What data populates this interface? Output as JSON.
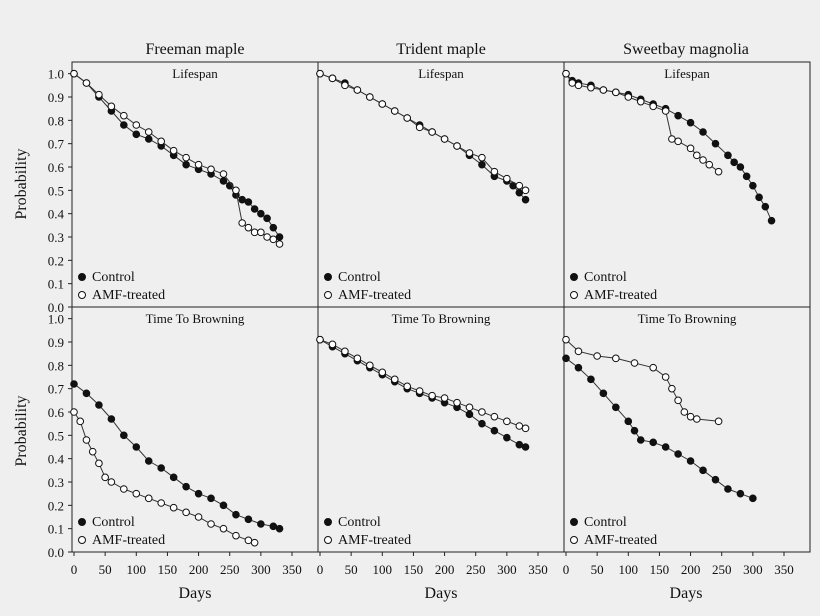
{
  "figure": {
    "background": "#efefef",
    "y_axis_label": "Probability",
    "x_axis_label": "Days",
    "columns": [
      "Freeman maple",
      "Trident maple",
      "Sweetbay magnolia"
    ],
    "rows": [
      "Lifespan",
      "Time To Browning"
    ],
    "legend": {
      "control": "Control",
      "amf": "AMF-treated"
    }
  },
  "chart_data": [
    {
      "type": "scatter",
      "row": "Lifespan",
      "column": "Freeman maple",
      "title": "Lifespan",
      "xlabel": "",
      "ylabel": "Probability",
      "xlim": [
        0,
        350
      ],
      "ylim": [
        0,
        1.05
      ],
      "grid": false,
      "legend_position": "bottom-left",
      "series": [
        {
          "name": "Control",
          "marker": "filled",
          "x": [
            0,
            20,
            40,
            60,
            80,
            100,
            120,
            140,
            160,
            180,
            200,
            220,
            240,
            250,
            260,
            270,
            280,
            290,
            300,
            310,
            320,
            330
          ],
          "y": [
            1.0,
            0.96,
            0.9,
            0.84,
            0.78,
            0.74,
            0.72,
            0.69,
            0.65,
            0.61,
            0.59,
            0.57,
            0.54,
            0.52,
            0.48,
            0.46,
            0.45,
            0.42,
            0.4,
            0.38,
            0.34,
            0.3
          ]
        },
        {
          "name": "AMF-treated",
          "marker": "open",
          "x": [
            0,
            20,
            40,
            60,
            80,
            100,
            120,
            140,
            160,
            180,
            200,
            220,
            240,
            260,
            270,
            280,
            290,
            300,
            310,
            320,
            330
          ],
          "y": [
            1.0,
            0.96,
            0.91,
            0.86,
            0.82,
            0.78,
            0.75,
            0.71,
            0.67,
            0.64,
            0.61,
            0.59,
            0.57,
            0.5,
            0.36,
            0.34,
            0.32,
            0.32,
            0.3,
            0.29,
            0.27
          ]
        }
      ]
    },
    {
      "type": "scatter",
      "row": "Lifespan",
      "column": "Trident maple",
      "title": "Lifespan",
      "xlabel": "",
      "ylabel": "",
      "xlim": [
        0,
        350
      ],
      "ylim": [
        0,
        1.05
      ],
      "grid": false,
      "legend_position": "bottom-left",
      "series": [
        {
          "name": "Control",
          "marker": "filled",
          "x": [
            0,
            20,
            40,
            60,
            80,
            100,
            120,
            140,
            160,
            180,
            200,
            220,
            240,
            260,
            280,
            300,
            310,
            320,
            330
          ],
          "y": [
            1.0,
            0.98,
            0.96,
            0.93,
            0.9,
            0.87,
            0.84,
            0.81,
            0.78,
            0.75,
            0.72,
            0.69,
            0.65,
            0.61,
            0.56,
            0.54,
            0.52,
            0.49,
            0.46
          ]
        },
        {
          "name": "AMF-treated",
          "marker": "open",
          "x": [
            0,
            20,
            40,
            60,
            80,
            100,
            120,
            140,
            160,
            180,
            200,
            220,
            240,
            260,
            280,
            300,
            320,
            330
          ],
          "y": [
            1.0,
            0.98,
            0.95,
            0.93,
            0.9,
            0.87,
            0.84,
            0.81,
            0.77,
            0.75,
            0.72,
            0.69,
            0.66,
            0.64,
            0.58,
            0.55,
            0.52,
            0.5
          ]
        }
      ]
    },
    {
      "type": "scatter",
      "row": "Lifespan",
      "column": "Sweetbay magnolia",
      "title": "Lifespan",
      "xlabel": "",
      "ylabel": "",
      "xlim": [
        0,
        350
      ],
      "ylim": [
        0,
        1.05
      ],
      "grid": false,
      "legend_position": "bottom-left",
      "series": [
        {
          "name": "Control",
          "marker": "filled",
          "x": [
            0,
            10,
            20,
            40,
            60,
            80,
            100,
            120,
            140,
            160,
            180,
            200,
            220,
            240,
            260,
            270,
            280,
            290,
            300,
            310,
            320,
            330
          ],
          "y": [
            1.0,
            0.97,
            0.96,
            0.95,
            0.93,
            0.92,
            0.91,
            0.89,
            0.87,
            0.85,
            0.82,
            0.79,
            0.75,
            0.7,
            0.65,
            0.62,
            0.6,
            0.56,
            0.52,
            0.47,
            0.43,
            0.37
          ]
        },
        {
          "name": "AMF-treated",
          "marker": "open",
          "x": [
            0,
            10,
            20,
            40,
            60,
            80,
            100,
            120,
            140,
            160,
            170,
            180,
            200,
            210,
            220,
            230,
            245
          ],
          "y": [
            1.0,
            0.96,
            0.95,
            0.94,
            0.93,
            0.92,
            0.9,
            0.88,
            0.86,
            0.84,
            0.72,
            0.71,
            0.68,
            0.65,
            0.63,
            0.61,
            0.58
          ]
        }
      ]
    },
    {
      "type": "scatter",
      "row": "Time To Browning",
      "column": "Freeman maple",
      "title": "Time To Browning",
      "xlabel": "Days",
      "ylabel": "Probability",
      "xlim": [
        0,
        350
      ],
      "ylim": [
        0,
        1.05
      ],
      "grid": false,
      "legend_position": "bottom-left",
      "series": [
        {
          "name": "Control",
          "marker": "filled",
          "x": [
            0,
            20,
            40,
            60,
            80,
            100,
            120,
            140,
            160,
            180,
            200,
            220,
            240,
            260,
            280,
            300,
            320,
            330
          ],
          "y": [
            0.72,
            0.68,
            0.63,
            0.57,
            0.5,
            0.45,
            0.39,
            0.36,
            0.32,
            0.28,
            0.25,
            0.23,
            0.2,
            0.16,
            0.14,
            0.12,
            0.11,
            0.1
          ]
        },
        {
          "name": "AMF-treated",
          "marker": "open",
          "x": [
            0,
            10,
            20,
            30,
            40,
            50,
            60,
            80,
            100,
            120,
            140,
            160,
            180,
            200,
            220,
            240,
            260,
            280,
            290
          ],
          "y": [
            0.6,
            0.56,
            0.48,
            0.43,
            0.38,
            0.32,
            0.3,
            0.27,
            0.25,
            0.23,
            0.21,
            0.19,
            0.17,
            0.15,
            0.12,
            0.1,
            0.07,
            0.05,
            0.04
          ]
        }
      ]
    },
    {
      "type": "scatter",
      "row": "Time To Browning",
      "column": "Trident maple",
      "title": "Time To Browning",
      "xlabel": "Days",
      "ylabel": "",
      "xlim": [
        0,
        350
      ],
      "ylim": [
        0,
        1.05
      ],
      "grid": false,
      "legend_position": "bottom-left",
      "series": [
        {
          "name": "Control",
          "marker": "filled",
          "x": [
            0,
            20,
            40,
            60,
            80,
            100,
            120,
            140,
            160,
            180,
            200,
            220,
            240,
            260,
            280,
            300,
            320,
            330
          ],
          "y": [
            0.91,
            0.88,
            0.85,
            0.82,
            0.79,
            0.76,
            0.73,
            0.7,
            0.68,
            0.66,
            0.64,
            0.62,
            0.59,
            0.55,
            0.52,
            0.49,
            0.46,
            0.45
          ]
        },
        {
          "name": "AMF-treated",
          "marker": "open",
          "x": [
            0,
            20,
            40,
            60,
            80,
            100,
            120,
            140,
            160,
            180,
            200,
            220,
            240,
            260,
            280,
            300,
            320,
            330
          ],
          "y": [
            0.91,
            0.89,
            0.86,
            0.83,
            0.8,
            0.77,
            0.74,
            0.71,
            0.69,
            0.67,
            0.66,
            0.64,
            0.62,
            0.6,
            0.58,
            0.56,
            0.54,
            0.53
          ]
        }
      ]
    },
    {
      "type": "scatter",
      "row": "Time To Browning",
      "column": "Sweetbay magnolia",
      "title": "Time To Browning",
      "xlabel": "Days",
      "ylabel": "",
      "xlim": [
        0,
        350
      ],
      "ylim": [
        0,
        1.05
      ],
      "grid": false,
      "legend_position": "bottom-left",
      "series": [
        {
          "name": "Control",
          "marker": "filled",
          "x": [
            0,
            20,
            40,
            60,
            80,
            100,
            110,
            120,
            140,
            160,
            180,
            200,
            220,
            240,
            260,
            280,
            300
          ],
          "y": [
            0.83,
            0.79,
            0.74,
            0.68,
            0.62,
            0.56,
            0.52,
            0.48,
            0.47,
            0.45,
            0.42,
            0.39,
            0.35,
            0.31,
            0.27,
            0.25,
            0.23
          ]
        },
        {
          "name": "AMF-treated",
          "marker": "open",
          "x": [
            0,
            20,
            50,
            80,
            110,
            140,
            160,
            170,
            180,
            190,
            200,
            210,
            245
          ],
          "y": [
            0.91,
            0.86,
            0.84,
            0.83,
            0.81,
            0.79,
            0.75,
            0.7,
            0.65,
            0.6,
            0.58,
            0.57,
            0.56
          ]
        }
      ]
    }
  ]
}
